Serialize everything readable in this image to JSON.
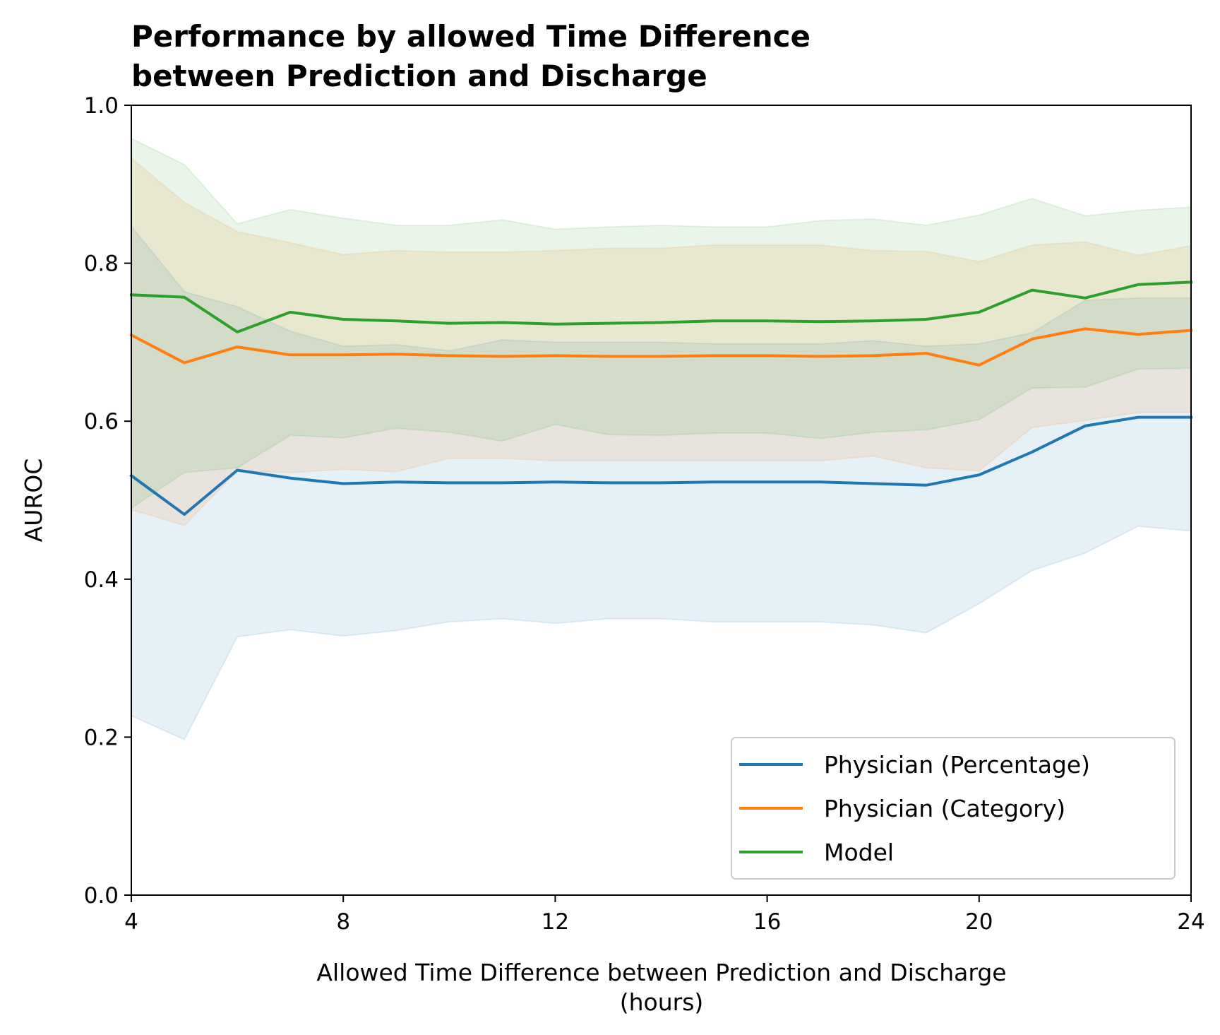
{
  "chart_data": {
    "type": "line",
    "title": [
      "Performance by allowed Time Difference",
      "between Prediction and Discharge"
    ],
    "xlabel": [
      "Allowed Time Difference between Prediction and Discharge",
      "(hours)"
    ],
    "ylabel": "AUROC",
    "xlim": [
      4,
      24
    ],
    "ylim": [
      0.0,
      1.0
    ],
    "x_ticks": [
      4,
      8,
      12,
      16,
      20,
      24
    ],
    "x_tick_labels": [
      "4",
      "8",
      "12",
      "16",
      "20",
      "24"
    ],
    "y_ticks": [
      0.0,
      0.2,
      0.4,
      0.6,
      0.8,
      1.0
    ],
    "y_tick_labels": [
      "0.0",
      "0.2",
      "0.4",
      "0.6",
      "0.8",
      "1.0"
    ],
    "grid": false,
    "legend_position": "lower-right",
    "x": [
      4,
      5,
      6,
      7,
      8,
      9,
      10,
      11,
      12,
      13,
      14,
      15,
      16,
      17,
      18,
      19,
      20,
      21,
      22,
      23,
      24
    ],
    "series": [
      {
        "name": "Physician (Percentage)",
        "color": "#1f77b4",
        "values": [
          0.531,
          0.482,
          0.538,
          0.528,
          0.521,
          0.523,
          0.522,
          0.522,
          0.523,
          0.522,
          0.522,
          0.523,
          0.523,
          0.523,
          0.521,
          0.519,
          0.532,
          0.561,
          0.594,
          0.605,
          0.605
        ],
        "lower": [
          0.227,
          0.197,
          0.327,
          0.336,
          0.328,
          0.335,
          0.346,
          0.35,
          0.344,
          0.35,
          0.35,
          0.346,
          0.346,
          0.346,
          0.342,
          0.332,
          0.369,
          0.411,
          0.433,
          0.467,
          0.461
        ],
        "upper": [
          0.847,
          0.764,
          0.745,
          0.714,
          0.695,
          0.697,
          0.689,
          0.703,
          0.7,
          0.7,
          0.7,
          0.698,
          0.698,
          0.698,
          0.702,
          0.695,
          0.698,
          0.712,
          0.753,
          0.756,
          0.756
        ]
      },
      {
        "name": "Physician (Category)",
        "color": "#ff7f0e",
        "values": [
          0.709,
          0.674,
          0.694,
          0.684,
          0.684,
          0.685,
          0.683,
          0.682,
          0.683,
          0.682,
          0.682,
          0.683,
          0.683,
          0.682,
          0.683,
          0.686,
          0.671,
          0.704,
          0.717,
          0.71,
          0.715
        ],
        "lower": [
          0.488,
          0.468,
          0.537,
          0.535,
          0.539,
          0.536,
          0.553,
          0.553,
          0.55,
          0.55,
          0.55,
          0.55,
          0.55,
          0.55,
          0.556,
          0.541,
          0.537,
          0.592,
          0.601,
          0.611,
          0.611
        ],
        "upper": [
          0.933,
          0.877,
          0.84,
          0.826,
          0.811,
          0.816,
          0.814,
          0.814,
          0.816,
          0.819,
          0.819,
          0.823,
          0.823,
          0.823,
          0.816,
          0.815,
          0.802,
          0.823,
          0.827,
          0.81,
          0.822
        ]
      },
      {
        "name": "Model",
        "color": "#2ca02c",
        "values": [
          0.76,
          0.757,
          0.713,
          0.738,
          0.729,
          0.727,
          0.724,
          0.725,
          0.723,
          0.724,
          0.725,
          0.727,
          0.727,
          0.726,
          0.727,
          0.729,
          0.738,
          0.766,
          0.756,
          0.773,
          0.776
        ],
        "lower": [
          0.49,
          0.535,
          0.541,
          0.582,
          0.579,
          0.591,
          0.586,
          0.575,
          0.596,
          0.583,
          0.582,
          0.585,
          0.585,
          0.578,
          0.586,
          0.589,
          0.602,
          0.642,
          0.643,
          0.666,
          0.667
        ],
        "upper": [
          0.958,
          0.925,
          0.85,
          0.868,
          0.857,
          0.848,
          0.848,
          0.855,
          0.843,
          0.846,
          0.848,
          0.846,
          0.846,
          0.854,
          0.856,
          0.848,
          0.861,
          0.882,
          0.86,
          0.867,
          0.871
        ]
      }
    ]
  }
}
